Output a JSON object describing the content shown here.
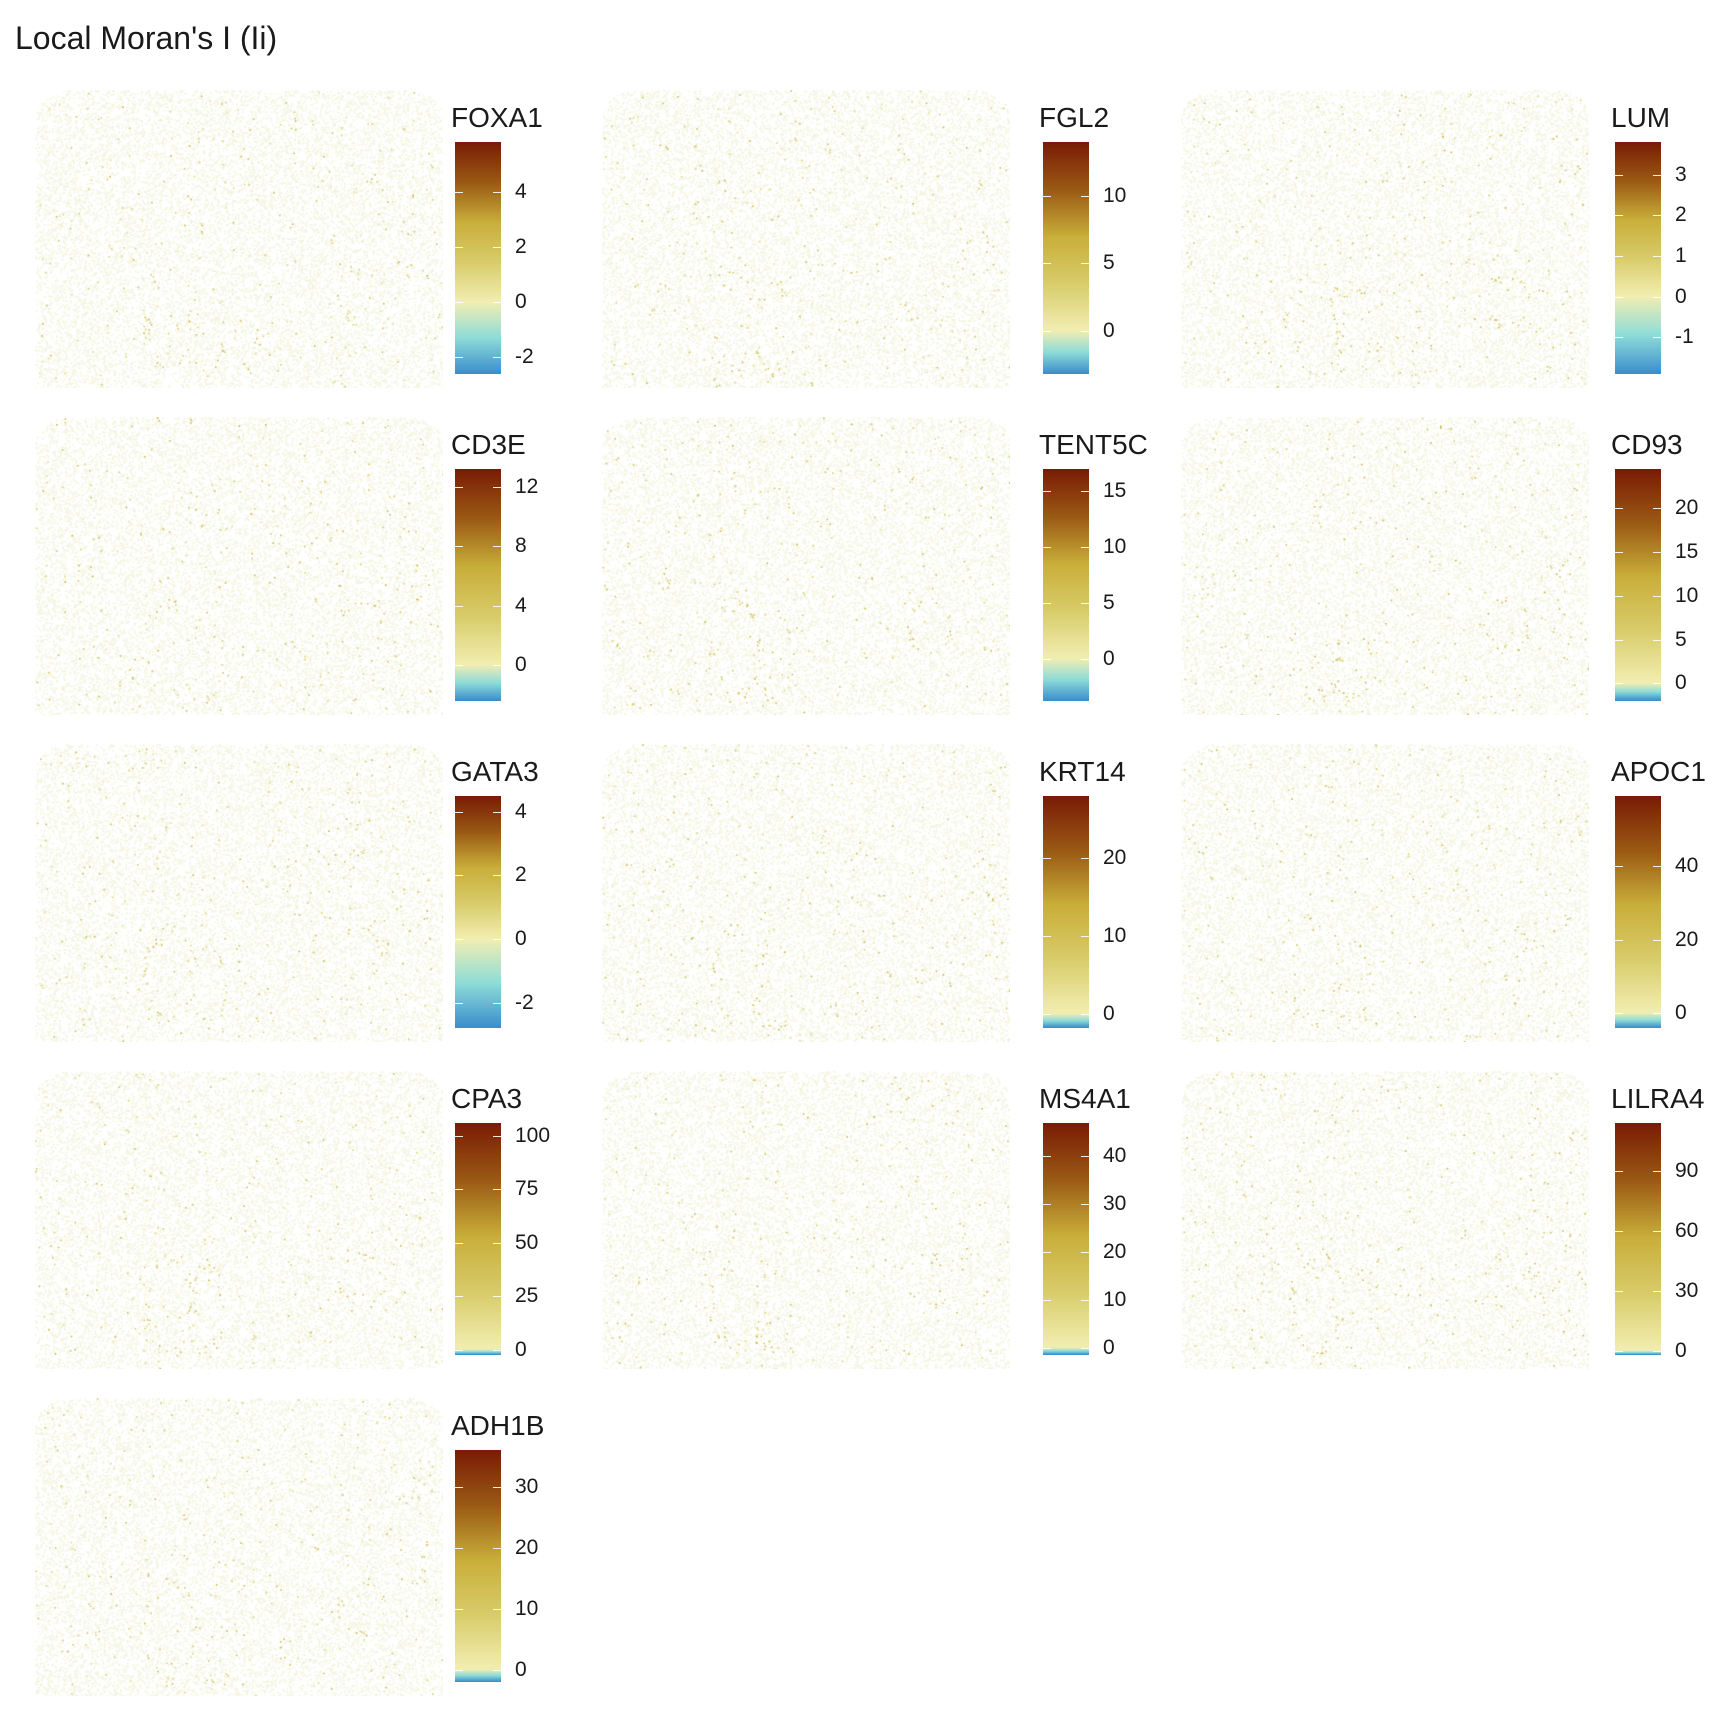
{
  "title": "Local Moran's I (Ii)",
  "chart_data": {
    "type": "heatmap",
    "description_of_marks": "spatial scatter of cells colored by local Moran's I",
    "palette": [
      "#3a8fcc",
      "#8fdcd8",
      "#f2eeb2",
      "#c9ae3a",
      "#9a5a14",
      "#7a1c05"
    ],
    "panels": [
      {
        "gene": "FOXA1",
        "scale_min": -2.6,
        "scale_max": 5.8,
        "ticks": [
          -2,
          0,
          2,
          4
        ]
      },
      {
        "gene": "FGL2",
        "scale_min": -3.2,
        "scale_max": 14.0,
        "ticks": [
          0,
          5,
          10
        ]
      },
      {
        "gene": "LUM",
        "scale_min": -1.9,
        "scale_max": 3.8,
        "ticks": [
          -1,
          0,
          1,
          2,
          3
        ]
      },
      {
        "gene": "CD3E",
        "scale_min": -2.4,
        "scale_max": 13.2,
        "ticks": [
          0,
          4,
          8,
          12
        ]
      },
      {
        "gene": "TENT5C",
        "scale_min": -3.8,
        "scale_max": 17.0,
        "ticks": [
          0,
          5,
          10,
          15
        ]
      },
      {
        "gene": "CD93",
        "scale_min": -2.0,
        "scale_max": 24.5,
        "ticks": [
          0,
          5,
          10,
          15,
          20
        ]
      },
      {
        "gene": "GATA3",
        "scale_min": -2.8,
        "scale_max": 4.5,
        "ticks": [
          -2,
          0,
          2,
          4
        ]
      },
      {
        "gene": "KRT14",
        "scale_min": -1.8,
        "scale_max": 28.0,
        "ticks": [
          0,
          10,
          20
        ]
      },
      {
        "gene": "APOC1",
        "scale_min": -4.0,
        "scale_max": 59.0,
        "ticks": [
          0,
          20,
          40
        ]
      },
      {
        "gene": "CPA3",
        "scale_min": -2.5,
        "scale_max": 106.0,
        "ticks": [
          0,
          25,
          50,
          75,
          100
        ]
      },
      {
        "gene": "MS4A1",
        "scale_min": -1.5,
        "scale_max": 47.0,
        "ticks": [
          0,
          10,
          20,
          30,
          40
        ]
      },
      {
        "gene": "LILRA4",
        "scale_min": -2.0,
        "scale_max": 114.0,
        "ticks": [
          0,
          30,
          60,
          90
        ]
      },
      {
        "gene": "ADH1B",
        "scale_min": -2.0,
        "scale_max": 36.0,
        "ticks": [
          0,
          10,
          20,
          30
        ]
      }
    ]
  }
}
